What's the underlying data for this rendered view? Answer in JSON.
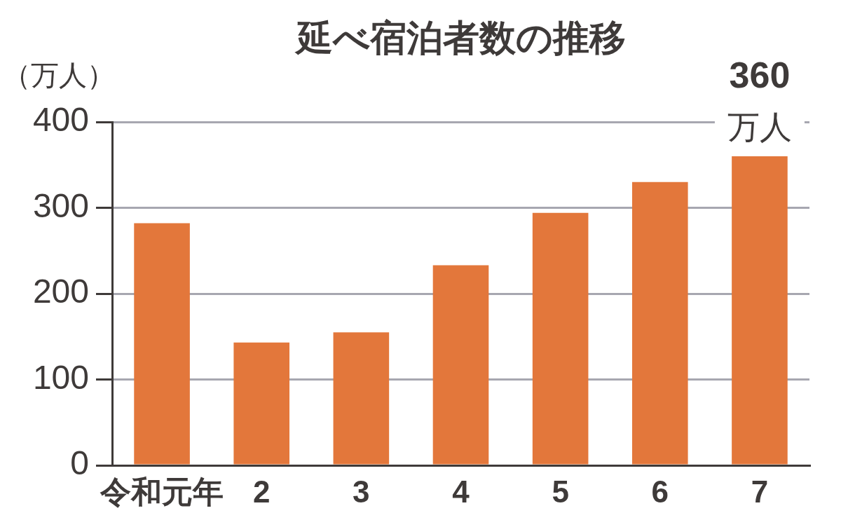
{
  "chart_data": {
    "type": "bar",
    "title": "延べ宿泊者数の推移",
    "ylabel": "（万人）",
    "categories": [
      "令和元年",
      "2",
      "3",
      "4",
      "5",
      "6",
      "7"
    ],
    "values": [
      282,
      143,
      155,
      233,
      294,
      330,
      360
    ],
    "color": "#e3773b",
    "value_labels": [
      null,
      null,
      null,
      null,
      null,
      null,
      "360\n万人"
    ],
    "ylim": [
      0,
      400
    ],
    "yticks": [
      0,
      100,
      200,
      300,
      400
    ],
    "grid": "y"
  }
}
